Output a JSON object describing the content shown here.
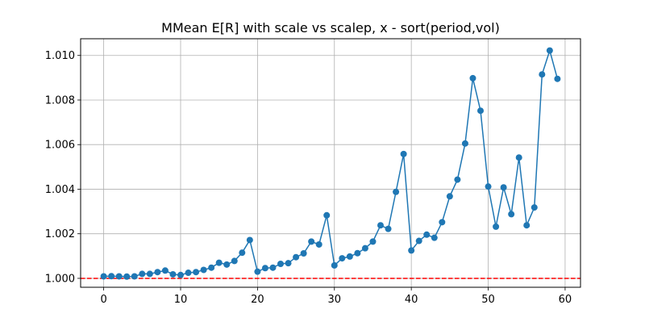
{
  "chart_data": {
    "type": "line",
    "title": "MMean E[R] with scale vs scalep, x - sort(period,vol)",
    "xlabel": "",
    "ylabel": "",
    "xlim": [
      -3,
      62
    ],
    "ylim": [
      0.9996,
      1.01075
    ],
    "x_ticks": [
      0,
      10,
      20,
      30,
      40,
      50,
      60
    ],
    "y_ticks": [
      1.0,
      1.002,
      1.004,
      1.006,
      1.008,
      1.01
    ],
    "y_tick_labels": [
      "1.000",
      "1.002",
      "1.004",
      "1.006",
      "1.008",
      "1.010"
    ],
    "grid": true,
    "series": [
      {
        "color": "#1f77b4",
        "marker": "circle",
        "x": [
          0,
          1,
          2,
          3,
          4,
          5,
          6,
          7,
          8,
          9,
          10,
          11,
          12,
          13,
          14,
          15,
          16,
          17,
          18,
          19,
          20,
          21,
          22,
          23,
          24,
          25,
          26,
          27,
          28,
          29,
          30,
          31,
          32,
          33,
          34,
          35,
          36,
          37,
          38,
          39,
          40,
          41,
          42,
          43,
          44,
          45,
          46,
          47,
          48,
          49,
          50,
          51,
          52,
          53,
          54,
          55,
          56,
          57,
          58,
          59
        ],
        "y": [
          1.00009,
          1.0001,
          1.00009,
          1.00008,
          1.00009,
          1.0002,
          1.0002,
          1.00028,
          1.00035,
          1.00018,
          1.00015,
          1.00025,
          1.00028,
          1.00038,
          1.00048,
          1.0007,
          1.00062,
          1.00078,
          1.00115,
          1.00172,
          1.0003,
          1.00046,
          1.00048,
          1.00065,
          1.00068,
          1.00095,
          1.00112,
          1.00165,
          1.00152,
          1.00283,
          1.00058,
          1.0009,
          1.00098,
          1.00113,
          1.00135,
          1.00165,
          1.00238,
          1.00222,
          1.00388,
          1.00558,
          1.00125,
          1.00168,
          1.00196,
          1.00182,
          1.00252,
          1.00368,
          1.00443,
          1.00605,
          1.00898,
          1.00752,
          1.00412,
          1.00232,
          1.00408,
          1.00288,
          1.00542,
          1.00238,
          1.00318,
          1.00915,
          1.01022,
          1.00895
        ]
      }
    ],
    "reference_line": {
      "y": 1.0,
      "color": "#ff0000",
      "style": "dashed"
    }
  }
}
